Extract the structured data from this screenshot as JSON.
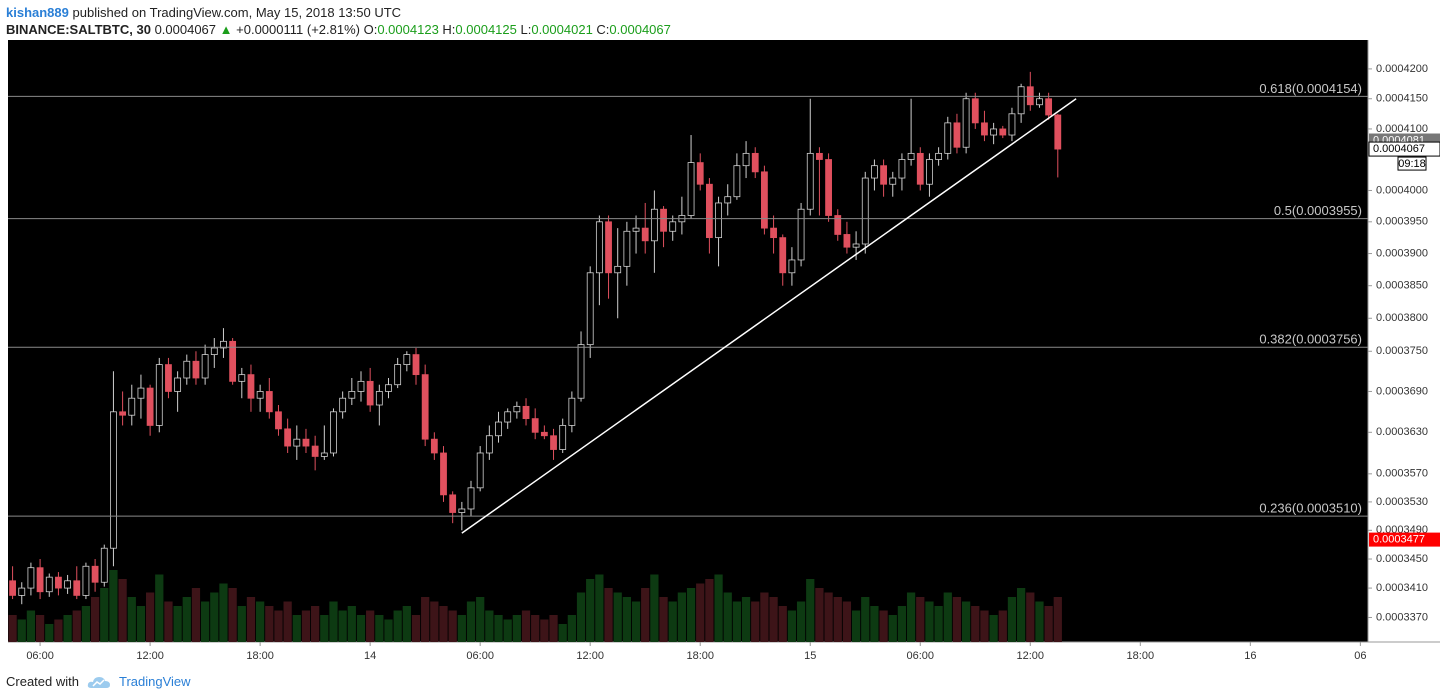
{
  "header": {
    "author": "kishan889",
    "published": "published on TradingView.com, May 15, 2018 13:50 UTC",
    "symbol": "BINANCE:SALTBTC, 30",
    "last": "0.0004067",
    "arrow": "▲",
    "change": "+0.0000111 (+2.81%)",
    "ohlc": [
      {
        "key": "O:",
        "value": "0.0004123"
      },
      {
        "key": "H:",
        "value": "0.0004125"
      },
      {
        "key": "L:",
        "value": "0.0004021"
      },
      {
        "key": "C:",
        "value": "0.0004067"
      }
    ]
  },
  "footer": {
    "text": "Created with",
    "brand": "TradingView"
  },
  "chart_data": {
    "type": "candlestick",
    "log_scale": true,
    "up_color": "#000000",
    "up_border": "#d0d0d0",
    "down_color": "#e0505e",
    "up_volume_color": "#0d3a12",
    "down_volume_color": "#3d1418",
    "x": [
      "2018-05-13T04:30",
      "2018-05-13T05:00",
      "2018-05-13T05:30",
      "2018-05-13T06:00",
      "2018-05-13T06:30",
      "2018-05-13T07:00",
      "2018-05-13T07:30",
      "2018-05-13T08:00",
      "2018-05-13T08:30",
      "2018-05-13T09:00",
      "2018-05-13T09:30",
      "2018-05-13T10:00",
      "2018-05-13T10:30",
      "2018-05-13T11:00",
      "2018-05-13T11:30",
      "2018-05-13T12:00",
      "2018-05-13T12:30",
      "2018-05-13T13:00",
      "2018-05-13T13:30",
      "2018-05-13T14:00",
      "2018-05-13T14:30",
      "2018-05-13T15:00",
      "2018-05-13T15:30",
      "2018-05-13T16:00",
      "2018-05-13T16:30",
      "2018-05-13T17:00",
      "2018-05-13T17:30",
      "2018-05-13T18:00",
      "2018-05-13T18:30",
      "2018-05-13T19:00",
      "2018-05-13T19:30",
      "2018-05-13T20:00",
      "2018-05-13T20:30",
      "2018-05-13T21:00",
      "2018-05-13T21:30",
      "2018-05-13T22:00",
      "2018-05-13T22:30",
      "2018-05-13T23:00",
      "2018-05-13T23:30",
      "2018-05-14T00:00",
      "2018-05-14T00:30",
      "2018-05-14T01:00",
      "2018-05-14T01:30",
      "2018-05-14T02:00",
      "2018-05-14T02:30",
      "2018-05-14T03:00",
      "2018-05-14T03:30",
      "2018-05-14T04:00",
      "2018-05-14T04:30",
      "2018-05-14T05:00",
      "2018-05-14T05:30",
      "2018-05-14T06:00",
      "2018-05-14T06:30",
      "2018-05-14T07:00",
      "2018-05-14T07:30",
      "2018-05-14T08:00",
      "2018-05-14T08:30",
      "2018-05-14T09:00",
      "2018-05-14T09:30",
      "2018-05-14T10:00",
      "2018-05-14T10:30",
      "2018-05-14T11:00",
      "2018-05-14T11:30",
      "2018-05-14T12:00",
      "2018-05-14T12:30",
      "2018-05-14T13:00",
      "2018-05-14T13:30",
      "2018-05-14T14:00",
      "2018-05-14T14:30",
      "2018-05-14T15:00",
      "2018-05-14T15:30",
      "2018-05-14T16:00",
      "2018-05-14T16:30",
      "2018-05-14T17:00",
      "2018-05-14T17:30",
      "2018-05-14T18:00",
      "2018-05-14T18:30",
      "2018-05-14T19:00",
      "2018-05-14T19:30",
      "2018-05-14T20:00",
      "2018-05-14T20:30",
      "2018-05-14T21:00",
      "2018-05-14T21:30",
      "2018-05-14T22:00",
      "2018-05-14T22:30",
      "2018-05-14T23:00",
      "2018-05-14T23:30",
      "2018-05-15T00:00",
      "2018-05-15T00:30",
      "2018-05-15T01:00",
      "2018-05-15T01:30",
      "2018-05-15T02:00",
      "2018-05-15T02:30",
      "2018-05-15T03:00",
      "2018-05-15T03:30",
      "2018-05-15T04:00",
      "2018-05-15T04:30",
      "2018-05-15T05:00",
      "2018-05-15T05:30",
      "2018-05-15T06:00",
      "2018-05-15T06:30",
      "2018-05-15T07:00",
      "2018-05-15T07:30",
      "2018-05-15T08:00",
      "2018-05-15T08:30",
      "2018-05-15T09:00",
      "2018-05-15T09:30",
      "2018-05-15T10:00",
      "2018-05-15T10:30",
      "2018-05-15T11:00",
      "2018-05-15T11:30",
      "2018-05-15T12:00",
      "2018-05-15T12:30",
      "2018-05-15T13:00",
      "2018-05-15T13:30"
    ],
    "open": [
      0.000342,
      0.00034,
      0.000341,
      0.0003438,
      0.0003405,
      0.0003425,
      0.000341,
      0.000342,
      0.00034,
      0.000344,
      0.0003418,
      0.0003465,
      0.000366,
      0.0003655,
      0.000368,
      0.0003695,
      0.000364,
      0.000373,
      0.000369,
      0.000371,
      0.0003735,
      0.000371,
      0.0003745,
      0.0003755,
      0.0003765,
      0.0003705,
      0.0003715,
      0.000368,
      0.000369,
      0.000366,
      0.0003635,
      0.000361,
      0.000362,
      0.000361,
      0.0003595,
      0.00036,
      0.000366,
      0.000368,
      0.000369,
      0.0003705,
      0.000367,
      0.000369,
      0.00037,
      0.000373,
      0.0003745,
      0.0003715,
      0.000362,
      0.00036,
      0.000354,
      0.0003515,
      0.000352,
      0.000355,
      0.00036,
      0.0003625,
      0.0003645,
      0.000366,
      0.0003668,
      0.000365,
      0.000363,
      0.0003625,
      0.0003605,
      0.000364,
      0.000368,
      0.000376,
      0.000387,
      0.000395,
      0.000387,
      0.000388,
      0.0003935,
      0.000394,
      0.000392,
      0.000397,
      0.0003935,
      0.000395,
      0.000396,
      0.0004045,
      0.000401,
      0.0003925,
      0.000398,
      0.000399,
      0.000404,
      0.000406,
      0.000403,
      0.000394,
      0.0003925,
      0.000387,
      0.000389,
      0.000397,
      0.000406,
      0.000405,
      0.000396,
      0.000393,
      0.000391,
      0.0003915,
      0.000402,
      0.000404,
      0.000401,
      0.000402,
      0.000405,
      0.000406,
      0.000401,
      0.000405,
      0.000406,
      0.000411,
      0.000407,
      0.000415,
      0.000411,
      0.000409,
      0.00041,
      0.000409,
      0.0004125,
      0.000417,
      0.000414,
      0.000415,
      0.0004123
    ],
    "high": [
      0.000344,
      0.0003418,
      0.0003445,
      0.000345,
      0.000343,
      0.0003432,
      0.0003428,
      0.000344,
      0.0003445,
      0.000345,
      0.000347,
      0.000372,
      0.000369,
      0.00037,
      0.0003715,
      0.00037,
      0.000374,
      0.000374,
      0.000372,
      0.0003745,
      0.000375,
      0.000376,
      0.000377,
      0.0003785,
      0.000377,
      0.0003725,
      0.000373,
      0.00037,
      0.000371,
      0.000367,
      0.000365,
      0.000364,
      0.0003635,
      0.0003625,
      0.000364,
      0.0003665,
      0.000369,
      0.000371,
      0.000372,
      0.0003725,
      0.00037,
      0.000371,
      0.000374,
      0.000375,
      0.0003755,
      0.000373,
      0.000363,
      0.000361,
      0.0003545,
      0.000353,
      0.000356,
      0.000361,
      0.000364,
      0.000366,
      0.0003665,
      0.0003675,
      0.000368,
      0.0003665,
      0.000364,
      0.0003635,
      0.000365,
      0.000369,
      0.000378,
      0.000388,
      0.000396,
      0.000396,
      0.000394,
      0.000395,
      0.000396,
      0.000398,
      0.0004,
      0.0003975,
      0.000396,
      0.000399,
      0.000409,
      0.000406,
      0.000402,
      0.000399,
      0.000401,
      0.000406,
      0.000408,
      0.000407,
      0.000404,
      0.000396,
      0.000393,
      0.000391,
      0.000398,
      0.000415,
      0.000407,
      0.000406,
      0.000397,
      0.000395,
      0.0003935,
      0.000403,
      0.000405,
      0.000405,
      0.000403,
      0.000406,
      0.000415,
      0.000407,
      0.000406,
      0.000407,
      0.000412,
      0.0004125,
      0.000416,
      0.000416,
      0.000413,
      0.000411,
      0.0004105,
      0.0004135,
      0.0004175,
      0.0004195,
      0.000416,
      0.000416,
      0.0004125
    ],
    "low": [
      0.0003395,
      0.0003388,
      0.00034,
      0.0003395,
      0.0003398,
      0.00034,
      0.0003402,
      0.0003395,
      0.0003395,
      0.0003405,
      0.0003412,
      0.000344,
      0.000364,
      0.000364,
      0.000365,
      0.0003625,
      0.000363,
      0.000368,
      0.000366,
      0.00037,
      0.00037,
      0.00037,
      0.0003725,
      0.000374,
      0.00037,
      0.000368,
      0.000366,
      0.000366,
      0.000365,
      0.0003625,
      0.00036,
      0.000359,
      0.00036,
      0.0003575,
      0.000359,
      0.0003595,
      0.000365,
      0.000367,
      0.0003675,
      0.000366,
      0.000364,
      0.000368,
      0.0003695,
      0.000372,
      0.00037,
      0.000361,
      0.000359,
      0.000353,
      0.00035,
      0.000349,
      0.000351,
      0.0003545,
      0.000359,
      0.0003615,
      0.0003635,
      0.000365,
      0.000364,
      0.000362,
      0.000362,
      0.000359,
      0.00036,
      0.000363,
      0.0003675,
      0.000374,
      0.000382,
      0.000383,
      0.00038,
      0.000385,
      0.00039,
      0.00039,
      0.000387,
      0.000391,
      0.000392,
      0.000393,
      0.0003955,
      0.0004,
      0.00039,
      0.000388,
      0.000396,
      0.0003985,
      0.000402,
      0.000402,
      0.000393,
      0.00039,
      0.000385,
      0.000385,
      0.000388,
      0.000396,
      0.000396,
      0.000395,
      0.000392,
      0.00039,
      0.000389,
      0.00039,
      0.0004,
      0.000399,
      0.000399,
      0.0004,
      0.000404,
      0.0004,
      0.000399,
      0.000404,
      0.000405,
      0.000406,
      0.000406,
      0.00041,
      0.000408,
      0.0004075,
      0.0004085,
      0.000408,
      0.000411,
      0.000413,
      0.0004135,
      0.0004115,
      0.0004021
    ],
    "close": [
      0.00034,
      0.000341,
      0.0003438,
      0.0003405,
      0.0003425,
      0.000341,
      0.000342,
      0.00034,
      0.000344,
      0.0003418,
      0.0003465,
      0.000366,
      0.0003655,
      0.000368,
      0.0003695,
      0.000364,
      0.000373,
      0.000369,
      0.000371,
      0.0003735,
      0.000371,
      0.0003745,
      0.0003755,
      0.0003765,
      0.0003705,
      0.0003715,
      0.000368,
      0.000369,
      0.000366,
      0.0003635,
      0.000361,
      0.000362,
      0.000361,
      0.0003595,
      0.00036,
      0.000366,
      0.000368,
      0.000369,
      0.0003705,
      0.000367,
      0.000369,
      0.00037,
      0.000373,
      0.0003745,
      0.0003715,
      0.000362,
      0.00036,
      0.000354,
      0.0003515,
      0.000352,
      0.000355,
      0.00036,
      0.0003625,
      0.0003645,
      0.000366,
      0.0003668,
      0.000365,
      0.000363,
      0.0003625,
      0.0003605,
      0.000364,
      0.000368,
      0.000376,
      0.000387,
      0.000395,
      0.000387,
      0.000388,
      0.0003935,
      0.000394,
      0.000392,
      0.000397,
      0.0003935,
      0.000395,
      0.000396,
      0.0004045,
      0.000401,
      0.0003925,
      0.000398,
      0.000399,
      0.000404,
      0.000406,
      0.000403,
      0.000394,
      0.0003925,
      0.000387,
      0.000389,
      0.000397,
      0.000406,
      0.000405,
      0.000396,
      0.000393,
      0.000391,
      0.0003915,
      0.000402,
      0.000404,
      0.000401,
      0.000402,
      0.000405,
      0.000406,
      0.000401,
      0.000405,
      0.000406,
      0.000411,
      0.000407,
      0.000415,
      0.000411,
      0.000409,
      0.00041,
      0.000409,
      0.0004125,
      0.000417,
      0.000414,
      0.000415,
      0.0004123,
      0.0004067
    ],
    "volume": [
      30,
      25,
      35,
      30,
      20,
      25,
      30,
      35,
      40,
      50,
      60,
      80,
      70,
      50,
      40,
      55,
      75,
      45,
      40,
      50,
      60,
      45,
      55,
      65,
      60,
      40,
      50,
      45,
      40,
      35,
      45,
      30,
      35,
      40,
      30,
      45,
      35,
      40,
      30,
      35,
      30,
      25,
      35,
      40,
      30,
      50,
      45,
      40,
      35,
      30,
      45,
      50,
      35,
      30,
      25,
      30,
      35,
      30,
      25,
      30,
      20,
      30,
      55,
      70,
      75,
      60,
      55,
      50,
      45,
      60,
      75,
      50,
      45,
      55,
      60,
      65,
      70,
      75,
      55,
      45,
      50,
      45,
      55,
      50,
      40,
      35,
      45,
      70,
      60,
      55,
      50,
      45,
      35,
      50,
      40,
      35,
      30,
      40,
      55,
      50,
      45,
      40,
      55,
      50,
      45,
      40,
      35,
      30,
      35,
      50,
      60,
      55,
      45,
      40,
      50
    ],
    "xlim": [
      "2018-05-13T04:15",
      "2018-05-16T06:25"
    ],
    "xticks": [
      {
        "value": "2018-05-13T06:00",
        "label": "06:00"
      },
      {
        "value": "2018-05-13T12:00",
        "label": "12:00"
      },
      {
        "value": "2018-05-13T18:00",
        "label": "18:00"
      },
      {
        "value": "2018-05-14T00:00",
        "label": "14"
      },
      {
        "value": "2018-05-14T06:00",
        "label": "06:00"
      },
      {
        "value": "2018-05-14T12:00",
        "label": "12:00"
      },
      {
        "value": "2018-05-14T18:00",
        "label": "18:00"
      },
      {
        "value": "2018-05-15T00:00",
        "label": "15"
      },
      {
        "value": "2018-05-15T06:00",
        "label": "06:00"
      },
      {
        "value": "2018-05-15T12:00",
        "label": "12:00"
      },
      {
        "value": "2018-05-15T18:00",
        "label": "18:00"
      },
      {
        "value": "2018-05-16T00:00",
        "label": "16"
      },
      {
        "value": "2018-05-16T06:00",
        "label": "06"
      }
    ],
    "ylim": [
      0.0003337,
      0.0004249
    ],
    "yticks": [
      {
        "value": 0.00042,
        "label": "0.0004200"
      },
      {
        "value": 0.000415,
        "label": "0.0004150"
      },
      {
        "value": 0.00041,
        "label": "0.0004100"
      },
      {
        "value": 0.0004,
        "label": "0.0004000"
      },
      {
        "value": 0.000395,
        "label": "0.0003950"
      },
      {
        "value": 0.00039,
        "label": "0.0003900"
      },
      {
        "value": 0.000385,
        "label": "0.0003850"
      },
      {
        "value": 0.00038,
        "label": "0.0003800"
      },
      {
        "value": 0.000375,
        "label": "0.0003750"
      },
      {
        "value": 0.000369,
        "label": "0.0003690"
      },
      {
        "value": 0.000363,
        "label": "0.0003630"
      },
      {
        "value": 0.000357,
        "label": "0.0003570"
      },
      {
        "value": 0.000353,
        "label": "0.0003530"
      },
      {
        "value": 0.000349,
        "label": "0.0003490"
      },
      {
        "value": 0.000345,
        "label": "0.0003450"
      },
      {
        "value": 0.000341,
        "label": "0.0003410"
      },
      {
        "value": 0.000337,
        "label": "0.0003370"
      }
    ],
    "fib_levels": [
      {
        "value": 0.0004154,
        "label": "0.618(0.0004154)"
      },
      {
        "value": 0.0003955,
        "label": "0.5(0.0003955)"
      },
      {
        "value": 0.0003756,
        "label": "0.382(0.0003756)"
      },
      {
        "value": 0.000351,
        "label": "0.236(0.0003510)"
      }
    ],
    "trend_line": {
      "x": [
        "2018-05-14T05:00",
        "2018-05-15T14:30"
      ],
      "values": [
        0.0003486,
        0.000415
      ]
    },
    "price_labels": [
      {
        "value": 0.0004081,
        "style": "gray"
      },
      {
        "value": 0.0004067,
        "style": "white"
      },
      {
        "value": 0.0003477,
        "style": "red"
      }
    ],
    "countdown": "09:18"
  }
}
